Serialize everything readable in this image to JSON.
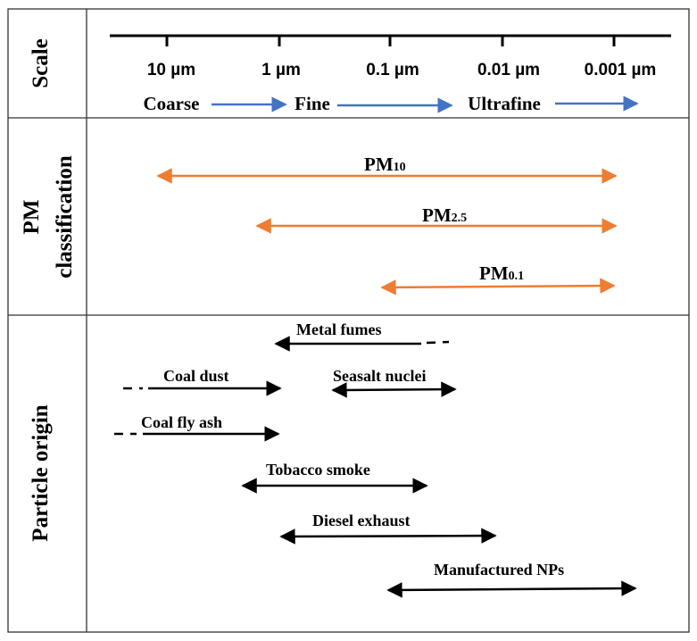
{
  "rows": {
    "scale": "Scale",
    "pm_line1": "PM",
    "pm_line2": "classification",
    "origin": "Particle origin"
  },
  "scale": {
    "ticks": [
      "10 µm",
      "1 µm",
      "0.1 µm",
      "0.01 µm",
      "0.001 µm"
    ],
    "categories": [
      "Coarse",
      "Fine",
      "Ultrafine"
    ]
  },
  "pm": {
    "pm10": {
      "base": "PM",
      "sub": "10"
    },
    "pm25": {
      "base": "PM",
      "sub": "2.5"
    },
    "pm01": {
      "base": "PM",
      "sub": "0.1"
    }
  },
  "origins": {
    "metal_fumes": "Metal fumes",
    "coal_dust": "Coal dust",
    "seasalt": "Seasalt nuclei",
    "coal_fly_ash": "Coal fly ash",
    "tobacco": "Tobacco smoke",
    "diesel": "Diesel exhaust",
    "nps": "Manufactured NPs"
  },
  "colors": {
    "blue": "#4472c4",
    "orange": "#ed7d31",
    "black": "#000000",
    "border": "#333333"
  }
}
